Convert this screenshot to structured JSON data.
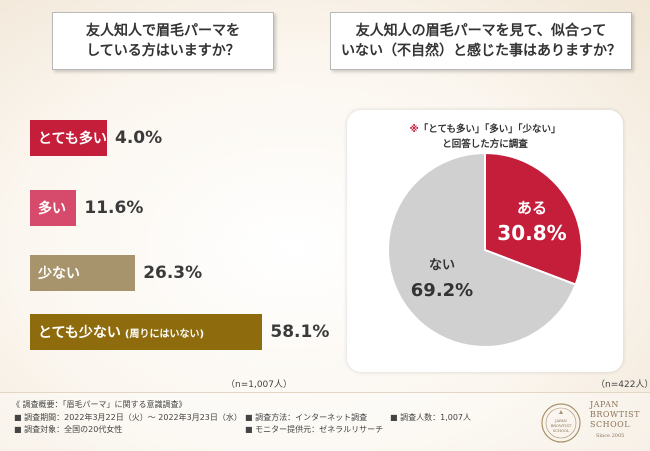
{
  "question_left": "友人知人で眉毛パーマを\nしている方はいますか？",
  "question_right": "友人知人の眉毛パーマを見て、似合って\nいない（不自然）と感じた事はありますか？",
  "colors": {
    "bar_colors": [
      "#c41e3a",
      "#d64a6b",
      "#a8946c",
      "#8e6b0d"
    ],
    "pie_colors": [
      "#c41e3a",
      "#d0d0d0"
    ],
    "note_mark": "#c41e3a"
  },
  "chart_data": [
    {
      "type": "bar",
      "orientation": "horizontal",
      "categories": [
        "とても多い",
        "多い",
        "少ない",
        "とても少ない"
      ],
      "category_sub_labels": [
        "",
        "",
        "",
        "(周りにはいない)"
      ],
      "values": [
        4.0,
        11.6,
        26.3,
        58.1
      ],
      "value_labels": [
        "4.0%",
        "11.6%",
        "26.3%",
        "58.1%"
      ],
      "unit": "%",
      "n_label": "（n=1,007人）"
    },
    {
      "type": "pie",
      "categories": [
        "ある",
        "ない"
      ],
      "values": [
        30.8,
        69.2
      ],
      "value_labels": [
        "30.8%",
        "69.2%"
      ],
      "unit": "%",
      "note_mark": "※",
      "note_line1": "「とても多い」「多い」「少ない」",
      "note_line2": "と回答した方に調査",
      "n_label": "（n=422人）"
    }
  ],
  "footer": {
    "title": "《 調査概要：「眉毛パーマ」に関する意識調査》",
    "items": [
      "■ 調査期間：2022年3月22日（火）～ 2022年3月23日（水）",
      "■ 調査対象：全国の20代女性",
      "■ 調査方法：インターネット調査",
      "■ モニター提供元：ゼネラルリサーチ",
      "■ 調査人数：1,007人"
    ]
  },
  "logo": {
    "line1": "JAPAN",
    "line2": "BROWTIST",
    "line3": "SCHOOL",
    "line4": "Since 2005",
    "seal_text": "JAPAN BROWTIST SCHOOL"
  }
}
